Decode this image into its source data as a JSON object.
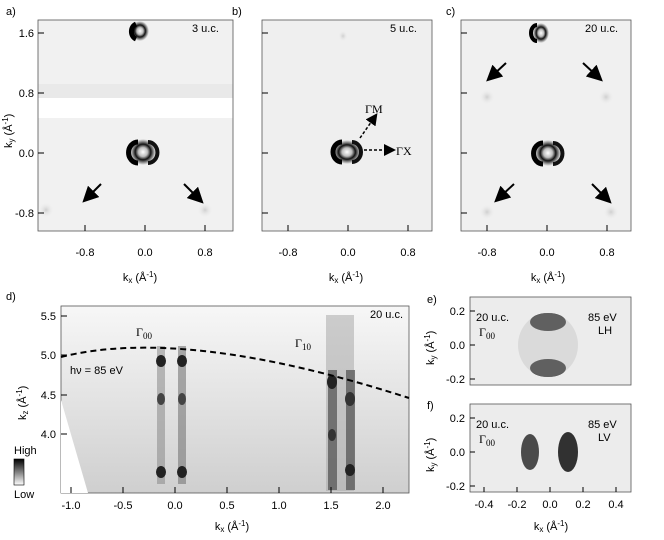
{
  "panels": {
    "a": {
      "letter": "a)",
      "thickness": "3 u.c."
    },
    "b": {
      "letter": "b)",
      "thickness": "5 u.c.",
      "dir_gm": "ΓM",
      "dir_gx": "ΓX"
    },
    "c": {
      "letter": "c)",
      "thickness": "20 u.c."
    },
    "d": {
      "letter": "d)",
      "thickness": "20 u.c.",
      "photon": "hν = 85 eV",
      "g00": "Γ",
      "g00_sub": "00",
      "g10": "Γ",
      "g10_sub": "10",
      "cbar_high": "High",
      "cbar_low": "Low"
    },
    "e": {
      "letter": "e)",
      "thickness": "20 u.c.",
      "g": "Γ",
      "g_sub": "00",
      "energy": "85 eV",
      "pol": "LH"
    },
    "f": {
      "letter": "f)",
      "thickness": "20 u.c.",
      "g": "Γ",
      "g_sub": "00",
      "energy": "85 eV",
      "pol": "LV"
    }
  },
  "axes": {
    "abc_y_ticks": [
      "1.6",
      "0.8",
      "0.0",
      "-0.8"
    ],
    "abc_x_ticks": [
      "-0.8",
      "0.0",
      "0.8"
    ],
    "ky_label": "k",
    "ky_sub": "y",
    "unit": " (Å",
    "unit_exp": "-1",
    "unit_close": ")",
    "kx_label": "k",
    "kx_sub": "x",
    "kz_label": "k",
    "kz_sub": "z",
    "d_y_ticks": [
      "5.5",
      "5.0",
      "4.5",
      "4.0"
    ],
    "d_x_ticks": [
      "-1.0",
      "-0.5",
      "0.0",
      "0.5",
      "1.0",
      "1.5",
      "2.0"
    ],
    "ef_y_ticks": [
      "0.2",
      "0.0",
      "-0.2"
    ],
    "ef_x_ticks": [
      "-0.4",
      "-0.2",
      "0.0",
      "0.2",
      "0.4"
    ]
  },
  "colors": {
    "spot": "#111111",
    "bg": "#f2f2f2"
  }
}
